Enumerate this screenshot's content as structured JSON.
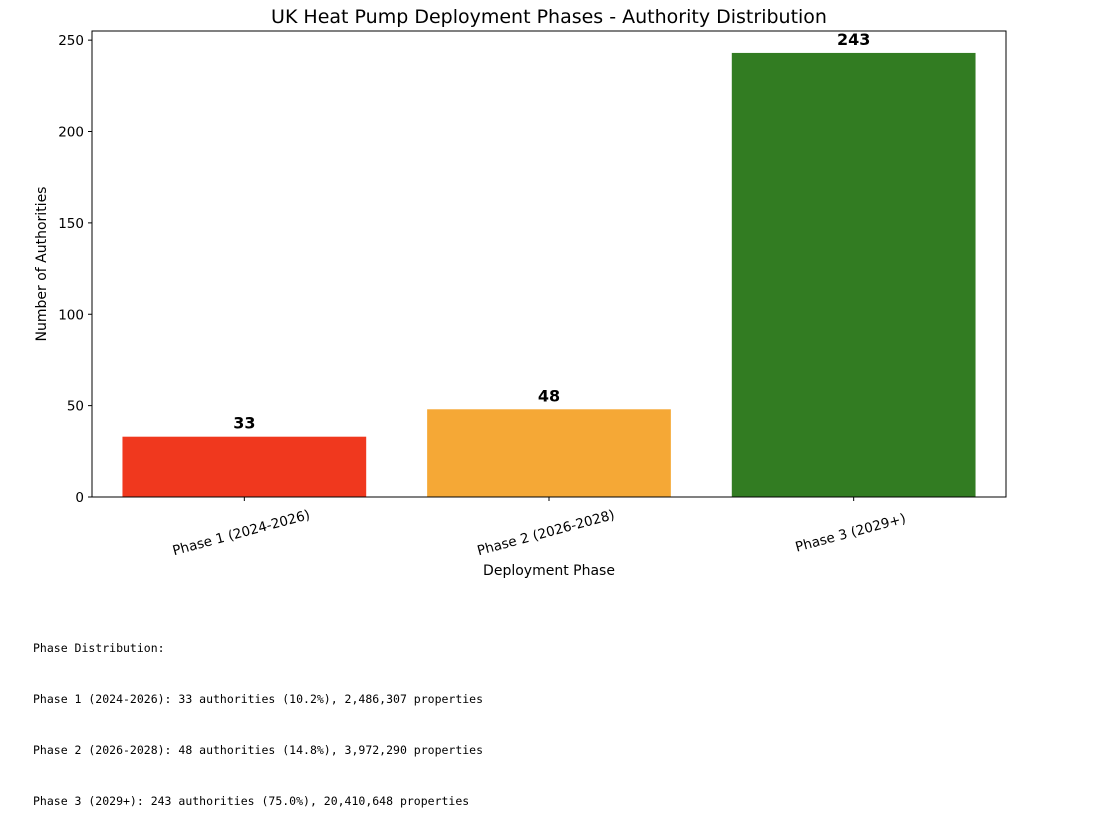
{
  "chart_data": {
    "type": "bar",
    "title": "UK Heat Pump Deployment Phases - Authority Distribution",
    "xlabel": "Deployment Phase",
    "ylabel": "Number of Authorities",
    "categories": [
      "Phase 1 (2024-2026)",
      "Phase 2 (2026-2028)",
      "Phase 3 (2029+)"
    ],
    "values": [
      33,
      48,
      243
    ],
    "data_labels": [
      "33",
      "48",
      "243"
    ],
    "colors": [
      "#f0381e",
      "#f5a836",
      "#327c22"
    ],
    "ylim": [
      0,
      255
    ],
    "yticks": [
      0,
      50,
      100,
      150,
      200,
      250
    ],
    "grid": false,
    "legend": "none"
  },
  "summary": {
    "heading": "Phase Distribution:",
    "lines": [
      "Phase 1 (2024-2026): 33 authorities (10.2%), 2,486,307 properties",
      "Phase 2 (2026-2028): 48 authorities (14.8%), 3,972,290 properties",
      "Phase 3 (2029+): 243 authorities (75.0%), 20,410,648 properties"
    ]
  }
}
